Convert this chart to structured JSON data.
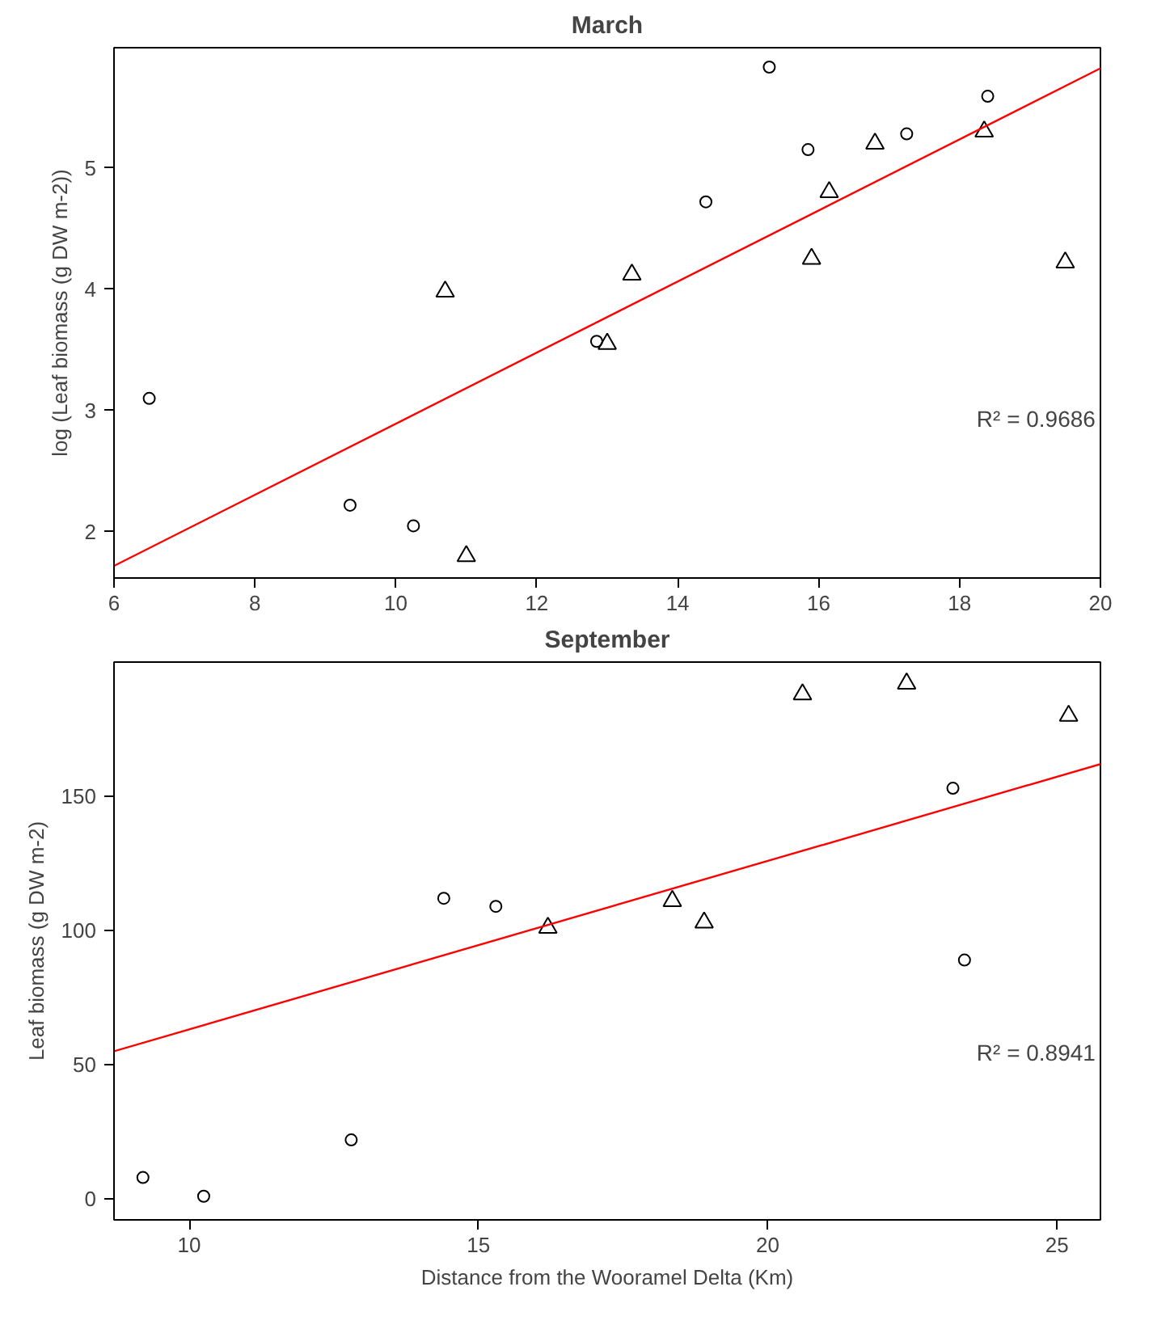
{
  "chart_data": [
    {
      "type": "scatter",
      "title": "March",
      "ylabel": "log (Leaf biomass (g DW m-2))",
      "xlim": [
        6,
        20
      ],
      "ylim": [
        1.62,
        5.99
      ],
      "xticks": [
        6,
        8,
        10,
        12,
        14,
        16,
        18,
        20
      ],
      "yticks": [
        2,
        3,
        4,
        5
      ],
      "grid": false,
      "annotations": [
        "R² = 0.9686"
      ],
      "series": [
        {
          "marker": "circle",
          "color": "#000000",
          "x": [
            6.5,
            9.35,
            10.25,
            12.85,
            14.4,
            15.3,
            15.85,
            17.25,
            18.4
          ],
          "values": [
            3.1,
            2.22,
            2.05,
            3.57,
            4.72,
            5.83,
            5.15,
            5.28,
            5.59
          ]
        },
        {
          "marker": "triangle",
          "color": "#000000",
          "x": [
            10.7,
            11.0,
            13.0,
            13.35,
            15.9,
            16.15,
            16.8,
            18.35,
            19.5
          ],
          "values": [
            3.98,
            1.8,
            3.55,
            4.12,
            4.25,
            4.8,
            5.2,
            5.3,
            4.22
          ]
        },
        {
          "type": "line",
          "line_style": "solid",
          "color": "#ff0000",
          "x": [
            6,
            20
          ],
          "values": [
            1.72,
            5.82
          ]
        }
      ]
    },
    {
      "type": "scatter",
      "title": "September",
      "xlabel": "Distance from the Wooramel Delta (Km)",
      "ylabel": "Leaf biomass (g DW m-2)",
      "xlim": [
        8.7,
        25.75
      ],
      "ylim": [
        -7.8,
        200
      ],
      "xticks": [
        10,
        15,
        20,
        25
      ],
      "yticks": [
        0,
        50,
        100,
        150
      ],
      "grid": false,
      "annotations": [
        "R² = 0.8941"
      ],
      "series": [
        {
          "marker": "circle",
          "color": "#000000",
          "x": [
            9.2,
            10.25,
            12.8,
            14.4,
            15.3,
            23.2,
            23.4
          ],
          "values": [
            8,
            1,
            22,
            112,
            109,
            153,
            89
          ]
        },
        {
          "marker": "triangle",
          "color": "#000000",
          "x": [
            16.2,
            18.35,
            18.9,
            20.6,
            22.4,
            25.2
          ],
          "values": [
            101,
            111,
            103,
            188,
            192,
            180
          ]
        },
        {
          "type": "line",
          "line_style": "solid",
          "color": "#ff0000",
          "x": [
            8.7,
            25.75
          ],
          "values": [
            55,
            162
          ]
        }
      ]
    }
  ]
}
